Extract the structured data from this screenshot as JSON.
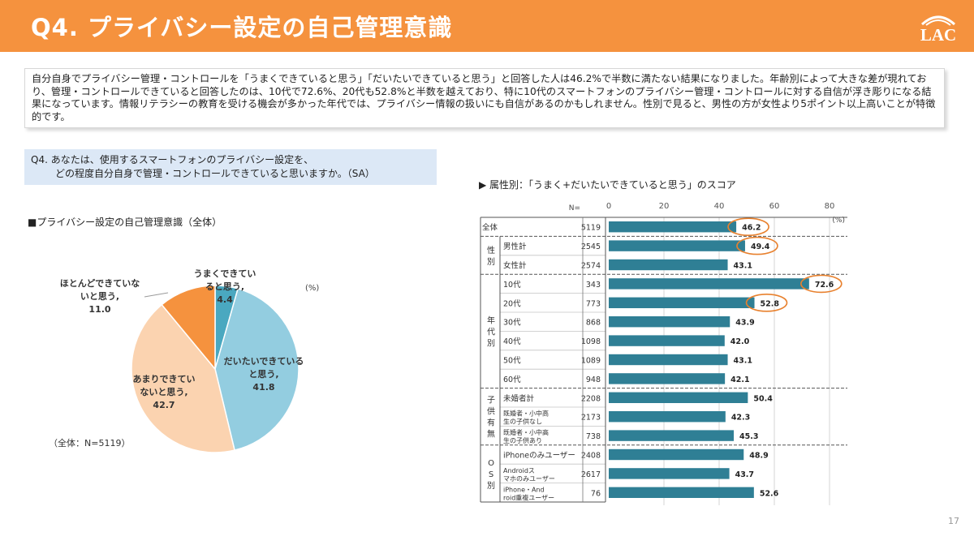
{
  "header": {
    "title": "Q4. プライバシー設定の自己管理意識",
    "logo_text": "LAC",
    "brand_color": "#f5923e"
  },
  "summary": {
    "text": "自分自身でプライバシー管理・コントロールを「うまくできていると思う」「だいたいできていると思う」と回答した人は46.2%で半数に満たない結果になりました。年齢別によって大きな差が現れており、管理・コントロールできていると回答したのは、10代で72.6%、20代も52.8%と半数を越えており、特に10代のスマートフォンのプライバシー管理・コントロールに対する自信が浮き彫りになる結果になっています。情報リテラシーの教育を受ける機会が多かった年代では、プライバシー情報の扱いにも自信があるのかもしれません。性別で見ると、男性の方が女性より5ポイント以上高いことが特徴的です。"
  },
  "question": {
    "line1": "Q4. あなたは、使用するスマートフォンのプライバシー設定を、",
    "line2": "どの程度自分自身で管理・コントロールできていると思いますか。（SA）"
  },
  "page_number": "17",
  "chart_data": [
    {
      "type": "pie",
      "title": "■プライバシー設定の自己管理意識（全体）",
      "unit": "(%)",
      "note": "（全体：N=5119）",
      "slices": [
        {
          "label_lines": [
            "うまくできてい",
            "ると思う,"
          ],
          "value": 4.4,
          "color": "#4aa8c0"
        },
        {
          "label_lines": [
            "だいたいできている",
            "と思う,"
          ],
          "value": 41.8,
          "color": "#93cde0"
        },
        {
          "label_lines": [
            "あまりできてい",
            "ないと思う,"
          ],
          "value": 42.7,
          "color": "#fbd3b0"
        },
        {
          "label_lines": [
            "ほとんどできていな",
            "いと思う,"
          ],
          "value": 11.0,
          "color": "#f5923e"
        }
      ]
    },
    {
      "type": "bar",
      "orientation": "horizontal",
      "title": "▶ 属性別：「うまく+だいたいできていると思う」のスコア",
      "n_header": "N=",
      "unit": "(%)",
      "xlim": [
        0,
        80
      ],
      "ticks": [
        0,
        20,
        40,
        60,
        80
      ],
      "bar_color": "#2f7f95",
      "highlight_color": "#e8812e",
      "groups": [
        {
          "label": "",
          "rows": [
            {
              "label": "全体",
              "n": "5119",
              "value": 46.2,
              "highlight": true
            }
          ]
        },
        {
          "label": "性別",
          "rows": [
            {
              "label": "男性計",
              "n": "2545",
              "value": 49.4,
              "highlight": true
            },
            {
              "label": "女性計",
              "n": "2574",
              "value": 43.1,
              "highlight": false
            }
          ]
        },
        {
          "label": "年代別",
          "rows": [
            {
              "label": "10代",
              "n": "343",
              "value": 72.6,
              "highlight": true
            },
            {
              "label": "20代",
              "n": "773",
              "value": 52.8,
              "highlight": true
            },
            {
              "label": "30代",
              "n": "868",
              "value": 43.9,
              "highlight": false
            },
            {
              "label": "40代",
              "n": "1098",
              "value": 42.0,
              "highlight": false
            },
            {
              "label": "50代",
              "n": "1089",
              "value": 43.1,
              "highlight": false
            },
            {
              "label": "60代",
              "n": "948",
              "value": 42.1,
              "highlight": false
            }
          ]
        },
        {
          "label": "子供有無",
          "rows": [
            {
              "label": "未婚者計",
              "n": "2208",
              "value": 50.4,
              "highlight": false
            },
            {
              "label": "既婚者・小中高生の子供なし",
              "n": "2173",
              "value": 42.3,
              "highlight": false
            },
            {
              "label": "既婚者・小中高生の子供あり",
              "n": "738",
              "value": 45.3,
              "highlight": false
            }
          ]
        },
        {
          "label": "OS別",
          "rows": [
            {
              "label": "iPhoneのみユーザー",
              "n": "2408",
              "value": 48.9,
              "highlight": false
            },
            {
              "label": "Androidスマホのみユーザー",
              "n": "2617",
              "value": 43.7,
              "highlight": false
            },
            {
              "label": "iPhone・Android重複ユーザー",
              "n": "76",
              "value": 52.6,
              "highlight": false
            }
          ]
        }
      ]
    }
  ]
}
